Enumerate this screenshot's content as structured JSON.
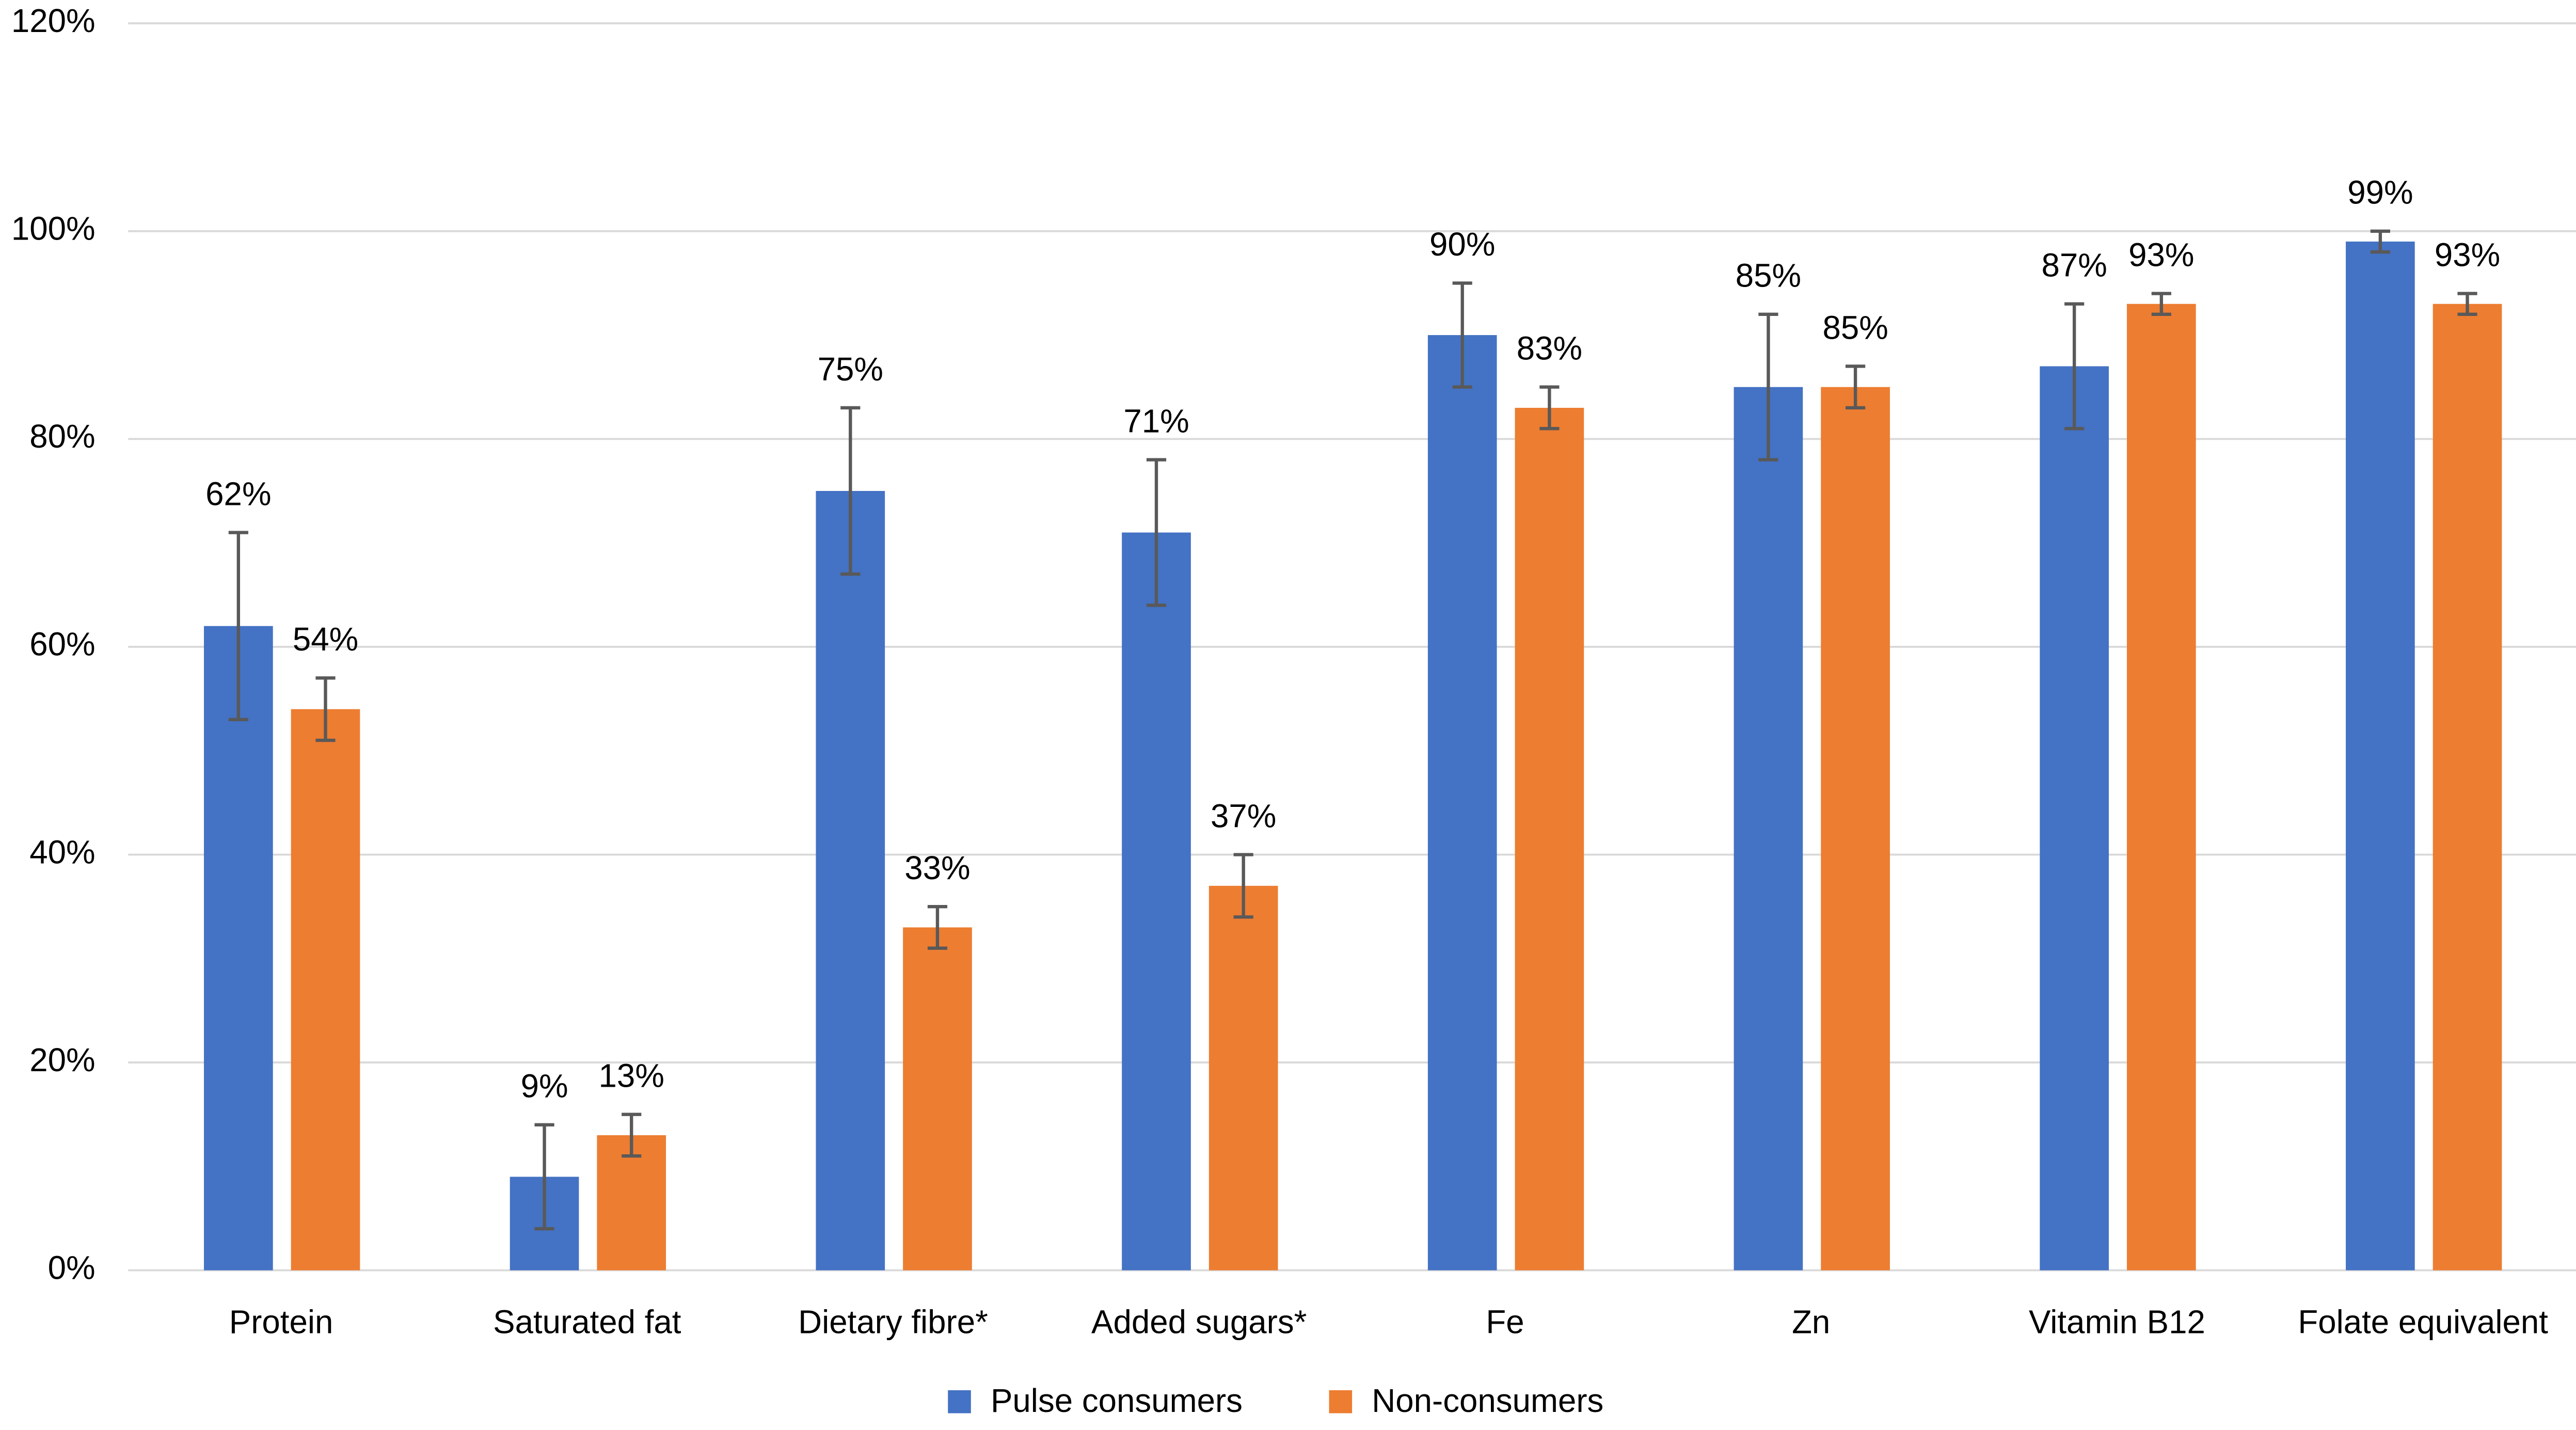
{
  "chart_data": {
    "type": "bar",
    "categories": [
      "Protein",
      "Saturated fat",
      "Dietary fibre*",
      "Added sugars*",
      "Fe",
      "Zn",
      "Vitamin B12",
      "Folate equivalent"
    ],
    "series": [
      {
        "name": "Pulse consumers",
        "color": "#4472c4",
        "values": [
          62,
          9,
          75,
          71,
          90,
          85,
          87,
          99
        ],
        "value_labels": [
          "62%",
          "9%",
          "75%",
          "71%",
          "90%",
          "85%",
          "87%",
          "99%"
        ],
        "errors": [
          9,
          5,
          8,
          7,
          5,
          7,
          6,
          1
        ]
      },
      {
        "name": "Non-consumers",
        "color": "#ed7d31",
        "values": [
          54,
          13,
          33,
          37,
          83,
          85,
          93,
          93
        ],
        "value_labels": [
          "54%",
          "13%",
          "33%",
          "37%",
          "83%",
          "85%",
          "93%",
          "93%"
        ],
        "errors": [
          3,
          2,
          2,
          3,
          2,
          2,
          1,
          1
        ]
      }
    ],
    "ylim": [
      0,
      120
    ],
    "yticks": [
      {
        "value": 0,
        "label": "0%"
      },
      {
        "value": 20,
        "label": "20%"
      },
      {
        "value": 40,
        "label": "40%"
      },
      {
        "value": 60,
        "label": "60%"
      },
      {
        "value": 80,
        "label": "80%"
      },
      {
        "value": 100,
        "label": "100%"
      },
      {
        "value": 120,
        "label": "120%"
      }
    ],
    "grid": true,
    "legend": "bottom",
    "error_color": "#595959"
  }
}
